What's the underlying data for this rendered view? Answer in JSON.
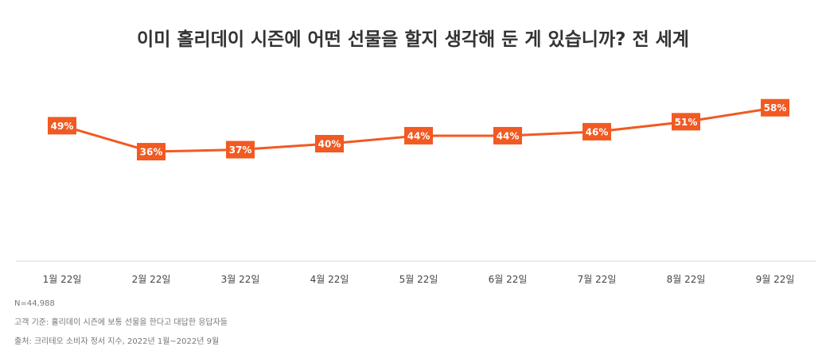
{
  "title": "이미 홀리데이 시즌에 어떤 선물을 할지 생각해 둔 게 있습니까? 전 세계",
  "chart_data": {
    "type": "line",
    "title": "이미 홀리데이 시즌에 어떤 선물을 할지 생각해 둔 게 있습니까? 전 세계",
    "categories": [
      "1월 22일",
      "2월 22일",
      "3월 22일",
      "4월 22일",
      "5월 22일",
      "6월 22일",
      "7월 22일",
      "8월 22일",
      "9월 22일"
    ],
    "values": [
      49,
      36,
      37,
      40,
      44,
      44,
      46,
      51,
      58
    ],
    "value_labels": [
      "49%",
      "36%",
      "37%",
      "40%",
      "44%",
      "44%",
      "46%",
      "51%",
      "58%"
    ],
    "unit": "%",
    "color": "#f15a22",
    "label_text_color": "#ffffff",
    "grid": false,
    "legend": "none"
  },
  "notes": {
    "sample": "N=44,988",
    "base": "고객 기준: 홀리데이 시즌에 보통 선물을 한다고 대답한 응답자들",
    "source": "출처: 크리테오 소비자 정서 지수, 2022년 1월~2022년 9월"
  }
}
